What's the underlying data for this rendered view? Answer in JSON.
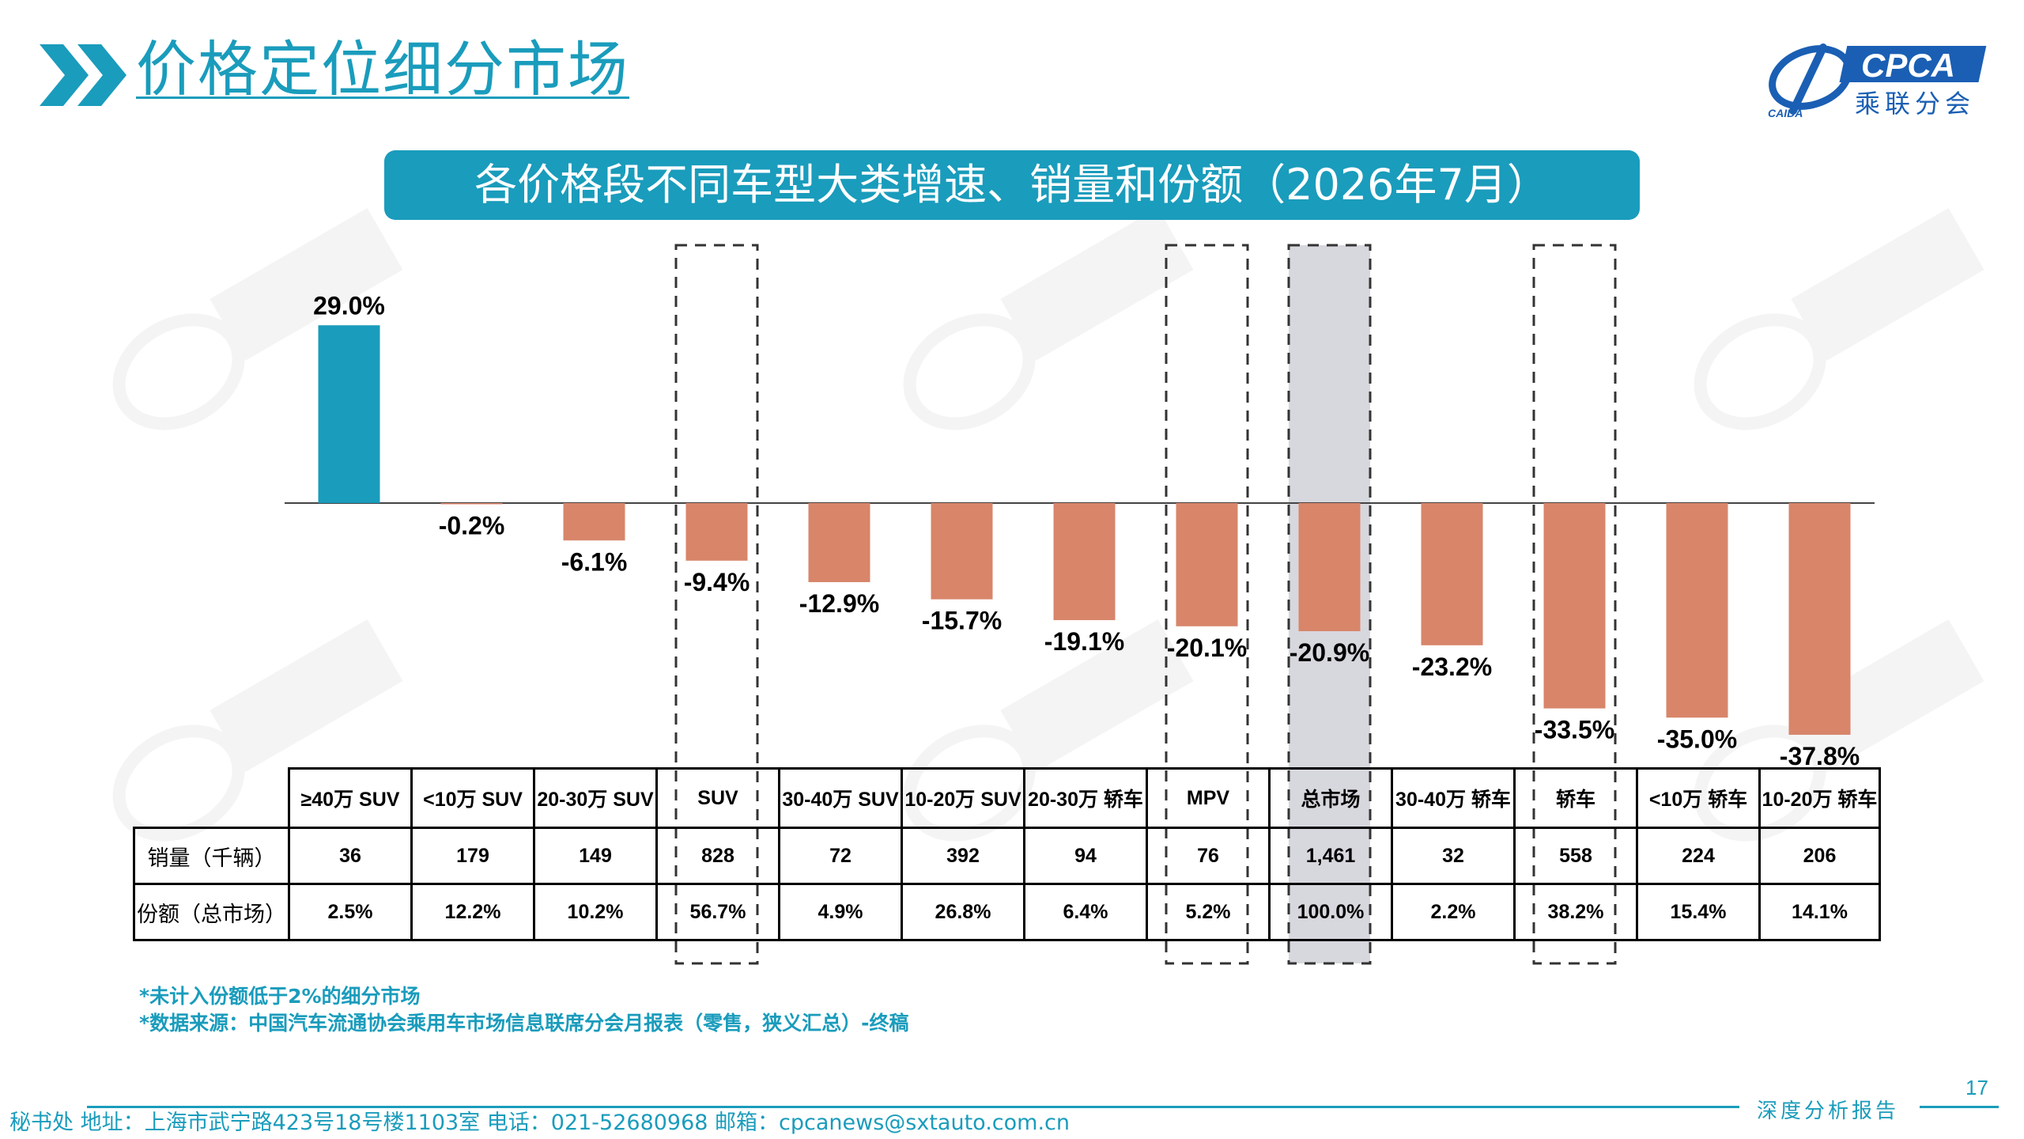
{
  "header": {
    "title": "价格定位细分市场",
    "logo_text": "CPCA",
    "logo_subtext": "乘联分会",
    "logo_small": "CAIDA"
  },
  "banner": {
    "text": "各价格段不同车型大类增速、销量和份额（2026年7月）"
  },
  "chart_data": {
    "type": "bar",
    "categories": [
      "≥40万 SUV",
      "<10万 SUV",
      "20-30万 SUV",
      "SUV",
      "30-40万 SUV",
      "10-20万 SUV",
      "20-30万 轿车",
      "MPV",
      "总市场",
      "30-40万 轿车",
      "轿车",
      "<10万 轿车",
      "10-20万 轿车"
    ],
    "values": [
      29.0,
      -0.2,
      -6.1,
      -9.4,
      -12.9,
      -15.7,
      -19.1,
      -20.1,
      -20.9,
      -23.2,
      -33.5,
      -35.0,
      -37.8
    ],
    "labels": [
      "29.0%",
      "-0.2%",
      "-6.1%",
      "-9.4%",
      "-12.9%",
      "-15.7%",
      "-19.1%",
      "-20.1%",
      "-20.9%",
      "-23.2%",
      "-33.5%",
      "-35.0%",
      "-37.8%"
    ],
    "unit": "%",
    "colors": {
      "positive": "#1a9cbc",
      "negative": "#d8856a",
      "highlight_bg": "#d7d7de"
    },
    "dashed_boxes": [
      "SUV",
      "MPV",
      "总市场",
      "轿车"
    ],
    "highlight": "总市场",
    "title": "",
    "xlabel": "",
    "ylabel": "",
    "grid": false,
    "legend": "none"
  },
  "table": {
    "rows": [
      {
        "label": "销量（千辆）",
        "values": [
          "36",
          "179",
          "149",
          "828",
          "72",
          "392",
          "94",
          "76",
          "1,461",
          "32",
          "558",
          "224",
          "206"
        ]
      },
      {
        "label": "份额（总市场）",
        "values": [
          "2.5%",
          "12.2%",
          "10.2%",
          "56.7%",
          "4.9%",
          "26.8%",
          "6.4%",
          "5.2%",
          "100.0%",
          "2.2%",
          "38.2%",
          "15.4%",
          "14.1%"
        ]
      }
    ]
  },
  "notes": [
    "*未计入份额低于2%的细分市场",
    "*数据来源：中国汽车流通协会乘用车市场信息联席分会月报表（零售，狭义汇总）-终稿"
  ],
  "footer": {
    "page_number": "17",
    "report_type": "深度分析报告",
    "contact": "秘书处   地址：上海市武宁路423号18号楼1103室  电话：021-52680968   邮箱：cpcanews@sxtauto.com.cn"
  }
}
